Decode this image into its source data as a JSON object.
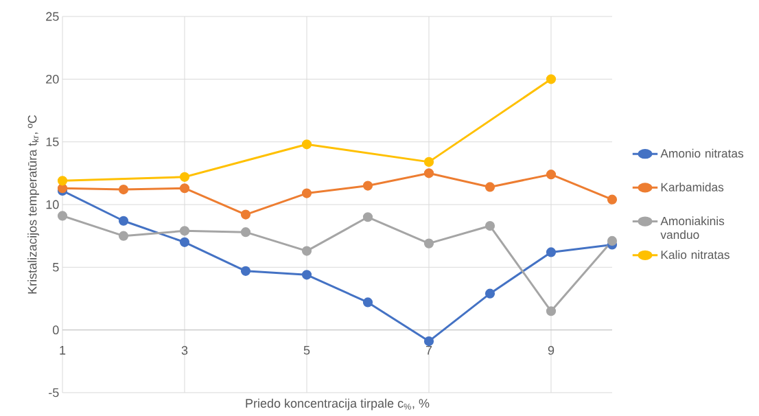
{
  "chart_data": {
    "type": "line",
    "xlabel": "Priedo koncentracija tirpale c$_{%}$, %",
    "ylabel": "Kristalizacijos temperatūra t$_{kr}$, ºC",
    "x": [
      1,
      2,
      3,
      4,
      5,
      6,
      7,
      8,
      9,
      10
    ],
    "series": [
      {
        "name": "Amonio nitratas",
        "color": "#4472c4",
        "values": [
          11.1,
          8.7,
          7.0,
          4.7,
          4.4,
          2.2,
          -0.9,
          2.9,
          6.2,
          6.8
        ]
      },
      {
        "name": "Karbamidas",
        "color": "#ed7d31",
        "values": [
          11.3,
          11.2,
          11.3,
          9.2,
          10.9,
          11.5,
          12.5,
          11.4,
          12.4,
          10.4
        ]
      },
      {
        "name": "Amoniakinis vanduo",
        "color": "#a5a5a5",
        "values": [
          9.1,
          7.5,
          7.9,
          7.8,
          6.3,
          9.0,
          6.9,
          8.3,
          1.5,
          7.1
        ]
      },
      {
        "name": "Kalio nitratas",
        "color": "#ffc000",
        "x": [
          1,
          3,
          5,
          7,
          9
        ],
        "values": [
          11.9,
          12.2,
          14.8,
          13.4,
          20.0
        ]
      }
    ],
    "xlim": [
      1,
      10
    ],
    "ylim": [
      -5,
      25
    ],
    "xticks": [
      1,
      3,
      5,
      7,
      9
    ],
    "yticks": [
      -5,
      0,
      5,
      10,
      15,
      20,
      25
    ],
    "grid": true,
    "legend": "right",
    "marker": "circle",
    "line_style": "solid"
  }
}
